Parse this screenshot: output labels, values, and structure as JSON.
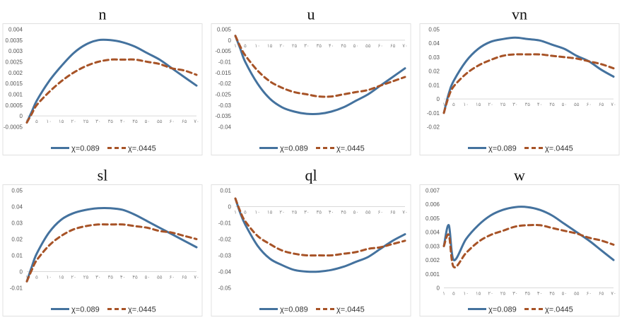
{
  "legend": {
    "series1": "χ=0.089",
    "series2": "χ=.0445"
  },
  "colors": {
    "series1": "#44729e",
    "series2": "#a75327"
  },
  "x_tick_labels": [
    "۱",
    "۵",
    "۱۰",
    "۱۵",
    "۲۰",
    "۲۵",
    "۳۰",
    "۳۵",
    "۴۰",
    "۴۵",
    "۵۰",
    "۵۵",
    "۶۰",
    "۶۵",
    "۷۰"
  ],
  "chart_data": [
    {
      "type": "line",
      "title": "n",
      "x": [
        1,
        3,
        5,
        10,
        15,
        20,
        25,
        30,
        35,
        40,
        45,
        50,
        55,
        60,
        65,
        70
      ],
      "ylim": [
        -0.0005,
        0.004
      ],
      "yticks": [
        "-0.0005",
        "0",
        "0.0005",
        "0.001",
        "0.0015",
        "0.002",
        "0.0025",
        "0.003",
        "0.0035",
        "0.004"
      ],
      "series": [
        {
          "name": "χ=0.089",
          "values": [
            -0.0003,
            0.0002,
            0.0007,
            0.0016,
            0.0023,
            0.0029,
            0.0033,
            0.0035,
            0.0035,
            0.0034,
            0.0032,
            0.0029,
            0.0026,
            0.0022,
            0.0018,
            0.0014
          ]
        },
        {
          "name": "χ=.0445",
          "values": [
            -0.0003,
            0.0001,
            0.0005,
            0.0011,
            0.0016,
            0.002,
            0.0023,
            0.0025,
            0.0026,
            0.0026,
            0.0026,
            0.0025,
            0.0024,
            0.0022,
            0.0021,
            0.0019
          ]
        }
      ]
    },
    {
      "type": "line",
      "title": "u",
      "x": [
        1,
        3,
        5,
        10,
        15,
        20,
        25,
        30,
        35,
        40,
        45,
        50,
        55,
        60,
        65,
        70
      ],
      "ylim": [
        -0.04,
        0.005
      ],
      "yticks": [
        "0.005",
        "0",
        "-0.005",
        "-0.01",
        "-0.015",
        "-0.02",
        "-0.025",
        "-0.03",
        "-0.035",
        "-0.04"
      ],
      "series": [
        {
          "name": "χ=0.089",
          "values": [
            0.002,
            -0.004,
            -0.01,
            -0.02,
            -0.027,
            -0.031,
            -0.033,
            -0.034,
            -0.034,
            -0.033,
            -0.031,
            -0.028,
            -0.025,
            -0.021,
            -0.017,
            -0.013
          ]
        },
        {
          "name": "χ=.0445",
          "values": [
            0.002,
            -0.003,
            -0.007,
            -0.014,
            -0.019,
            -0.022,
            -0.024,
            -0.025,
            -0.026,
            -0.026,
            -0.025,
            -0.024,
            -0.023,
            -0.021,
            -0.019,
            -0.017
          ]
        }
      ]
    },
    {
      "type": "line",
      "title": "vn",
      "x": [
        1,
        3,
        5,
        10,
        15,
        20,
        25,
        30,
        35,
        40,
        45,
        50,
        55,
        60,
        65,
        70
      ],
      "ylim": [
        -0.02,
        0.05
      ],
      "yticks": [
        "0.05",
        "0.04",
        "0.03",
        "0.02",
        "0.01",
        "0",
        "-0.01",
        "-0.02"
      ],
      "series": [
        {
          "name": "χ=0.089",
          "values": [
            -0.01,
            0.004,
            0.013,
            0.027,
            0.036,
            0.041,
            0.043,
            0.044,
            0.043,
            0.042,
            0.039,
            0.036,
            0.031,
            0.027,
            0.021,
            0.016
          ]
        },
        {
          "name": "χ=.0445",
          "values": [
            -0.01,
            0.002,
            0.009,
            0.018,
            0.024,
            0.028,
            0.031,
            0.032,
            0.032,
            0.032,
            0.031,
            0.03,
            0.029,
            0.027,
            0.025,
            0.022
          ]
        }
      ]
    },
    {
      "type": "line",
      "title": "sl",
      "x": [
        1,
        3,
        5,
        10,
        15,
        20,
        25,
        30,
        35,
        40,
        45,
        50,
        55,
        60,
        65,
        70
      ],
      "ylim": [
        -0.01,
        0.05
      ],
      "yticks": [
        "0.05",
        "0.04",
        "0.03",
        "0.02",
        "0.01",
        "0",
        "-0.01"
      ],
      "series": [
        {
          "name": "χ=0.089",
          "values": [
            -0.006,
            0.003,
            0.011,
            0.024,
            0.032,
            0.036,
            0.038,
            0.039,
            0.039,
            0.038,
            0.035,
            0.031,
            0.027,
            0.023,
            0.019,
            0.015
          ]
        },
        {
          "name": "χ=.0445",
          "values": [
            -0.006,
            0.001,
            0.007,
            0.016,
            0.022,
            0.026,
            0.028,
            0.029,
            0.029,
            0.029,
            0.028,
            0.027,
            0.025,
            0.024,
            0.022,
            0.02
          ]
        }
      ]
    },
    {
      "type": "line",
      "title": "ql",
      "x": [
        1,
        3,
        5,
        10,
        15,
        20,
        25,
        30,
        35,
        40,
        45,
        50,
        55,
        60,
        65,
        70
      ],
      "ylim": [
        -0.05,
        0.01
      ],
      "yticks": [
        "0.01",
        "0",
        "-0.01",
        "-0.02",
        "-0.03",
        "-0.04",
        "-0.05"
      ],
      "series": [
        {
          "name": "χ=0.089",
          "values": [
            0.005,
            -0.004,
            -0.011,
            -0.024,
            -0.032,
            -0.036,
            -0.039,
            -0.04,
            -0.04,
            -0.039,
            -0.037,
            -0.034,
            -0.031,
            -0.026,
            -0.021,
            -0.017
          ]
        },
        {
          "name": "χ=.0445",
          "values": [
            0.005,
            -0.003,
            -0.009,
            -0.018,
            -0.023,
            -0.027,
            -0.029,
            -0.03,
            -0.03,
            -0.03,
            -0.029,
            -0.028,
            -0.026,
            -0.025,
            -0.023,
            -0.021
          ]
        }
      ]
    },
    {
      "type": "line",
      "title": "w",
      "x": [
        1,
        3,
        5,
        10,
        15,
        20,
        25,
        30,
        35,
        40,
        45,
        50,
        55,
        60,
        65,
        70
      ],
      "ylim": [
        0,
        0.007
      ],
      "yticks": [
        "0.007",
        "0.006",
        "0.005",
        "0.004",
        "0.003",
        "0.002",
        "0.001",
        "0"
      ],
      "series": [
        {
          "name": "χ=0.089",
          "values": [
            0.003,
            0.0045,
            0.002,
            0.0035,
            0.0045,
            0.0052,
            0.0056,
            0.0058,
            0.0058,
            0.0056,
            0.0052,
            0.0046,
            0.004,
            0.0034,
            0.0027,
            0.002
          ]
        },
        {
          "name": "χ=.0445",
          "values": [
            0.003,
            0.0038,
            0.0015,
            0.0025,
            0.0033,
            0.0038,
            0.0041,
            0.0044,
            0.0045,
            0.0045,
            0.0043,
            0.0041,
            0.0039,
            0.0036,
            0.0034,
            0.0031
          ]
        }
      ]
    }
  ]
}
